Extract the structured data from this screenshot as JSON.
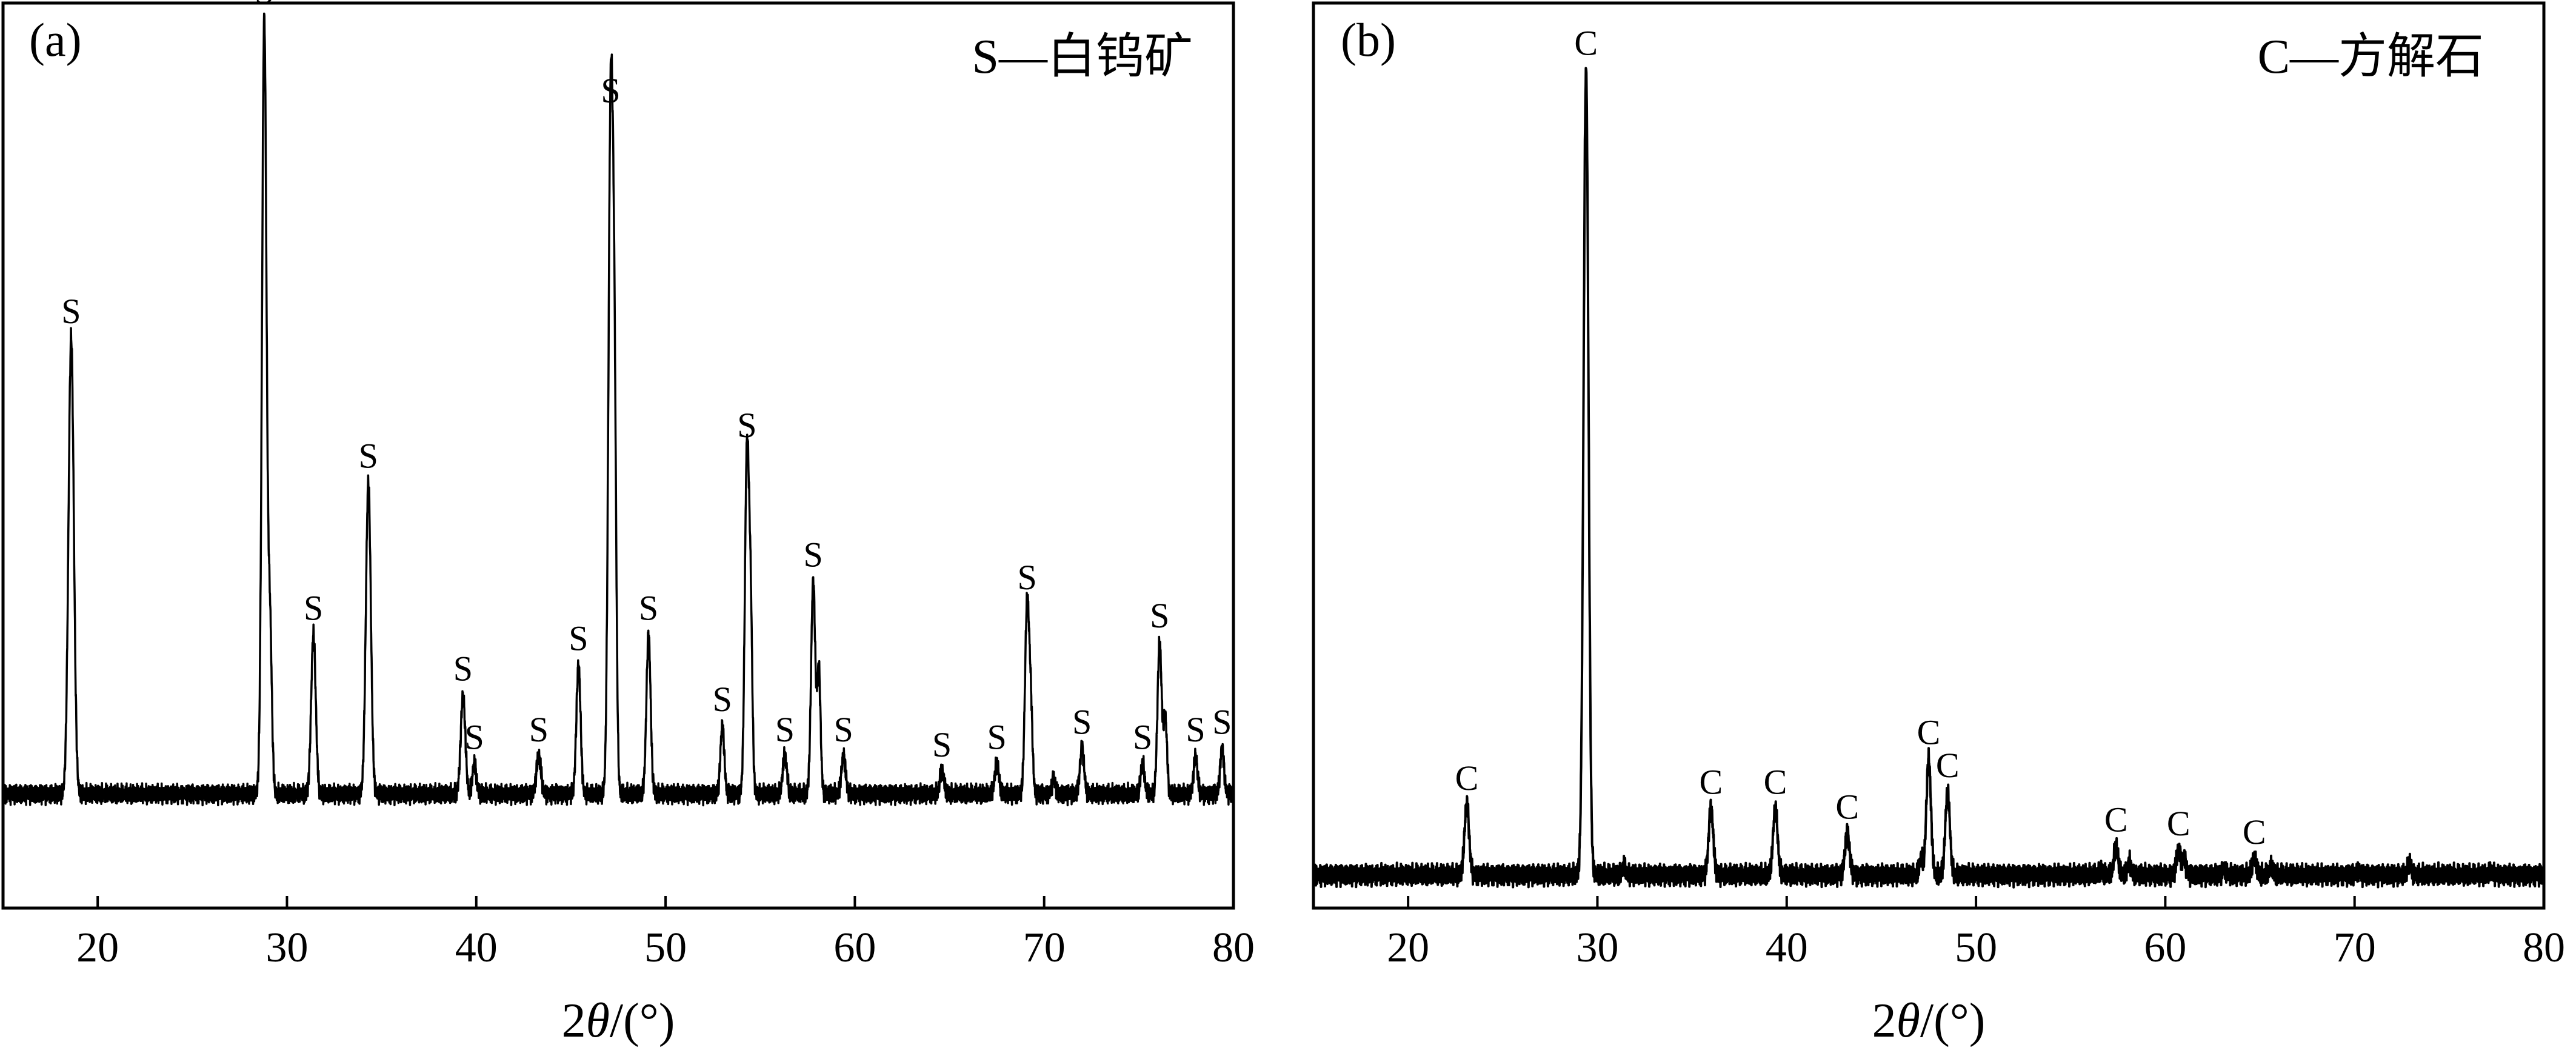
{
  "chart_data": [
    {
      "type": "line",
      "panel_label": "(a)",
      "legend_text": "S—白钨矿",
      "xlabel": "2θ/(°)",
      "xlim": [
        15,
        80
      ],
      "x_ticks": [
        20,
        30,
        40,
        50,
        60,
        70,
        80
      ],
      "ylim": [
        -1.3,
        10.6
      ],
      "yticks_shown": false,
      "peak_marker": "S",
      "baseline": 0.2,
      "peaks": [
        {
          "x": 18.6,
          "y": 6.0,
          "w": 0.14,
          "label": "S"
        },
        {
          "x": 28.8,
          "y": 10.2,
          "w": 0.12,
          "label": "S"
        },
        {
          "x": 29.1,
          "y": 2.2,
          "w": 0.1
        },
        {
          "x": 31.4,
          "y": 2.1,
          "w": 0.12,
          "label": "S"
        },
        {
          "x": 34.3,
          "y": 4.1,
          "w": 0.13,
          "label": "S"
        },
        {
          "x": 39.3,
          "y": 1.3,
          "w": 0.12,
          "label": "S"
        },
        {
          "x": 39.9,
          "y": 0.4,
          "w": 0.1,
          "label": "S"
        },
        {
          "x": 43.3,
          "y": 0.5,
          "w": 0.12,
          "label": "S"
        },
        {
          "x": 45.4,
          "y": 1.7,
          "w": 0.11,
          "label": "S"
        },
        {
          "x": 47.1,
          "y": 8.9,
          "w": 0.12,
          "label": "S"
        },
        {
          "x": 47.3,
          "y": 4.6,
          "w": 0.1
        },
        {
          "x": 49.1,
          "y": 2.1,
          "w": 0.11,
          "label": "S"
        },
        {
          "x": 53.0,
          "y": 0.9,
          "w": 0.1,
          "label": "S"
        },
        {
          "x": 54.3,
          "y": 4.5,
          "w": 0.11,
          "label": "S"
        },
        {
          "x": 54.5,
          "y": 2.1,
          "w": 0.09
        },
        {
          "x": 56.3,
          "y": 0.5,
          "w": 0.11,
          "label": "S"
        },
        {
          "x": 57.8,
          "y": 2.8,
          "w": 0.11,
          "label": "S"
        },
        {
          "x": 58.1,
          "y": 1.6,
          "w": 0.09
        },
        {
          "x": 59.4,
          "y": 0.5,
          "w": 0.11,
          "label": "S"
        },
        {
          "x": 64.6,
          "y": 0.3,
          "w": 0.11,
          "label": "S"
        },
        {
          "x": 67.5,
          "y": 0.4,
          "w": 0.11,
          "label": "S"
        },
        {
          "x": 69.1,
          "y": 2.5,
          "w": 0.11,
          "label": "S"
        },
        {
          "x": 69.3,
          "y": 1.0,
          "w": 0.09
        },
        {
          "x": 70.5,
          "y": 0.2,
          "w": 0.09
        },
        {
          "x": 72.0,
          "y": 0.6,
          "w": 0.11,
          "label": "S"
        },
        {
          "x": 75.2,
          "y": 0.4,
          "w": 0.1,
          "label": "S"
        },
        {
          "x": 76.1,
          "y": 2.0,
          "w": 0.11,
          "label": "S"
        },
        {
          "x": 76.4,
          "y": 1.0,
          "w": 0.09
        },
        {
          "x": 78.0,
          "y": 0.5,
          "w": 0.1,
          "label": "S"
        },
        {
          "x": 79.4,
          "y": 0.6,
          "w": 0.1,
          "label": "S"
        }
      ]
    },
    {
      "type": "line",
      "panel_label": "(b)",
      "legend_text": "C—方解石",
      "xlabel": "2θ/(°)",
      "xlim": [
        15,
        80
      ],
      "x_ticks": [
        20,
        30,
        40,
        50,
        60,
        70,
        80
      ],
      "ylim": [
        -0.3,
        10.6
      ],
      "yticks_shown": false,
      "peak_marker": "C",
      "baseline": 0.1,
      "peaks": [
        {
          "x": 23.1,
          "y": 0.85,
          "w": 0.12,
          "label": "C"
        },
        {
          "x": 29.4,
          "y": 9.7,
          "w": 0.13,
          "label": "C"
        },
        {
          "x": 31.4,
          "y": 0.1,
          "w": 0.09
        },
        {
          "x": 36.0,
          "y": 0.8,
          "w": 0.12,
          "label": "C"
        },
        {
          "x": 39.4,
          "y": 0.8,
          "w": 0.12,
          "label": "C"
        },
        {
          "x": 43.2,
          "y": 0.5,
          "w": 0.12,
          "label": "C"
        },
        {
          "x": 47.1,
          "y": 0.2,
          "w": 0.09
        },
        {
          "x": 47.5,
          "y": 1.4,
          "w": 0.12,
          "label": "C"
        },
        {
          "x": 48.5,
          "y": 1.0,
          "w": 0.12,
          "label": "C"
        },
        {
          "x": 56.6,
          "y": 0.05,
          "w": 0.09
        },
        {
          "x": 57.4,
          "y": 0.35,
          "w": 0.11,
          "label": "C"
        },
        {
          "x": 58.1,
          "y": 0.15,
          "w": 0.09
        },
        {
          "x": 60.7,
          "y": 0.3,
          "w": 0.11,
          "label": "C"
        },
        {
          "x": 61.0,
          "y": 0.2,
          "w": 0.09
        },
        {
          "x": 63.1,
          "y": 0.08,
          "w": 0.09
        },
        {
          "x": 64.7,
          "y": 0.2,
          "w": 0.11,
          "label": "C"
        },
        {
          "x": 65.6,
          "y": 0.1,
          "w": 0.09
        },
        {
          "x": 70.2,
          "y": 0.05,
          "w": 0.09
        },
        {
          "x": 72.9,
          "y": 0.15,
          "w": 0.09
        },
        {
          "x": 77.2,
          "y": 0.04,
          "w": 0.09
        }
      ]
    }
  ]
}
